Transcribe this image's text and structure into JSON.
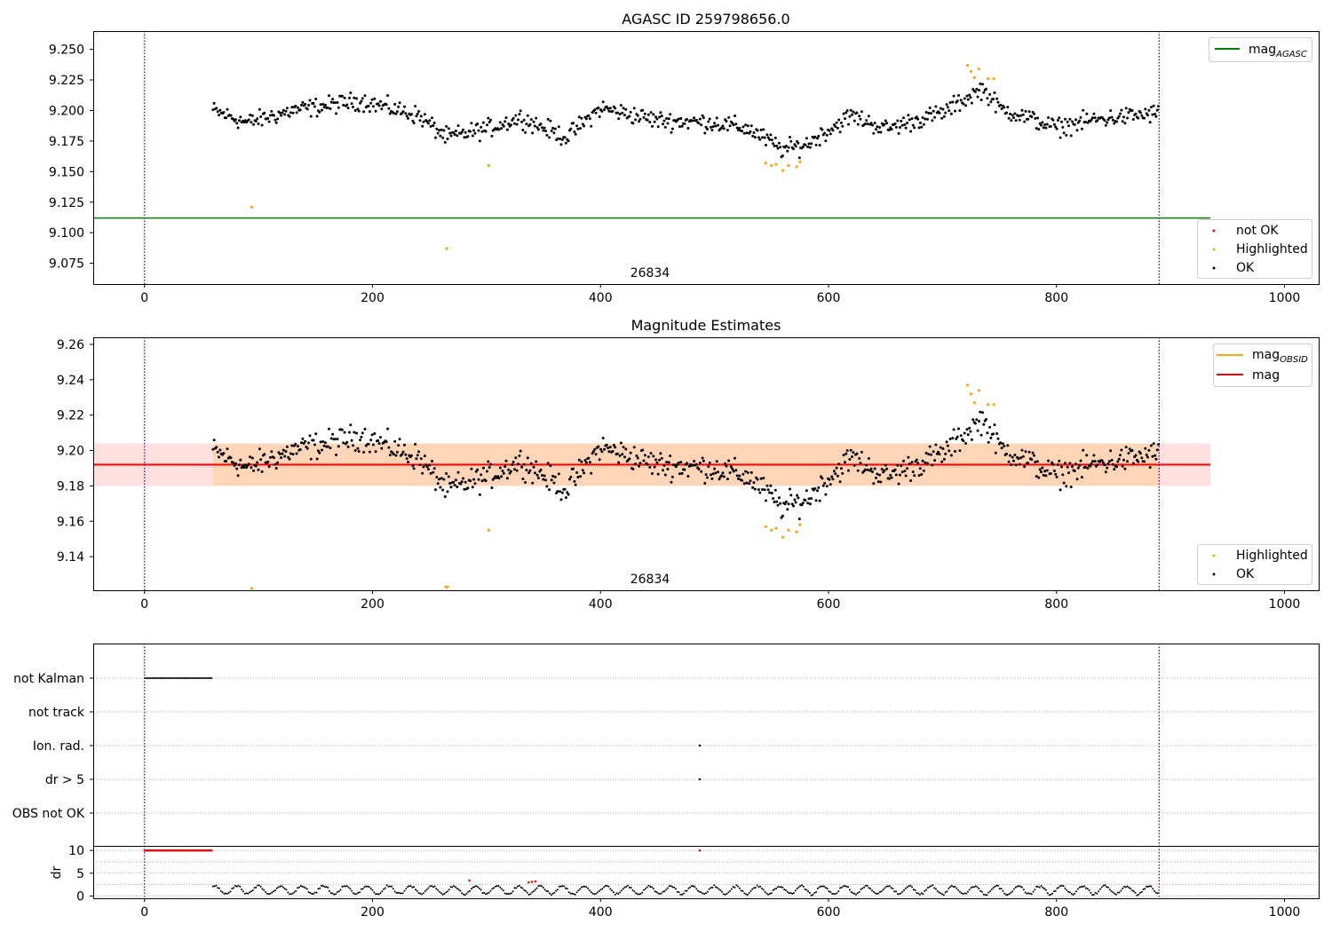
{
  "chart_data": [
    {
      "type": "scatter",
      "title": "AGASC ID 259798656.0",
      "annotation": "26834",
      "xlim": [
        -45,
        1030
      ],
      "ylim": [
        9.058,
        9.265
      ],
      "xticks": [
        0,
        200,
        400,
        600,
        800,
        1000
      ],
      "yticks": [
        9.075,
        9.1,
        9.125,
        9.15,
        9.175,
        9.2,
        9.225,
        9.25
      ],
      "ytick_labels": [
        "9.075",
        "9.100",
        "9.125",
        "9.150",
        "9.175",
        "9.200",
        "9.225",
        "9.250"
      ],
      "vlines": [
        0,
        890
      ],
      "mag_agasc": 9.112,
      "mag_agasc_xrange": [
        -45,
        935
      ],
      "legend_top": [
        "mag_AGASC"
      ],
      "legend_bottom": [
        "not OK",
        "Highlighted",
        "OK"
      ],
      "colors": {
        "ok": "#000000",
        "highlighted": "#ffa500",
        "not_ok": "#ff0000",
        "mag_agasc": "#008000",
        "vline": "#800080"
      },
      "highlighted_points": [
        [
          94,
          9.121
        ],
        [
          265,
          9.087
        ],
        [
          302,
          9.155
        ],
        [
          545,
          9.157
        ],
        [
          550,
          9.155
        ],
        [
          554,
          9.156
        ],
        [
          560,
          9.151
        ],
        [
          565,
          9.155
        ],
        [
          572,
          9.154
        ],
        [
          575,
          9.158
        ],
        [
          722,
          9.237
        ],
        [
          725,
          9.232
        ],
        [
          728,
          9.227
        ],
        [
          732,
          9.234
        ],
        [
          740,
          9.226
        ],
        [
          745,
          9.226
        ]
      ],
      "ok_trend": [
        [
          60,
          9.2
        ],
        [
          90,
          9.19
        ],
        [
          130,
          9.2
        ],
        [
          190,
          9.208
        ],
        [
          240,
          9.196
        ],
        [
          265,
          9.178
        ],
        [
          300,
          9.185
        ],
        [
          330,
          9.194
        ],
        [
          370,
          9.178
        ],
        [
          400,
          9.202
        ],
        [
          450,
          9.192
        ],
        [
          500,
          9.19
        ],
        [
          530,
          9.185
        ],
        [
          560,
          9.168
        ],
        [
          580,
          9.172
        ],
        [
          620,
          9.196
        ],
        [
          650,
          9.185
        ],
        [
          700,
          9.198
        ],
        [
          735,
          9.218
        ],
        [
          750,
          9.202
        ],
        [
          800,
          9.186
        ],
        [
          830,
          9.192
        ],
        [
          890,
          9.198
        ]
      ]
    },
    {
      "type": "scatter",
      "title": "Magnitude Estimates",
      "annotation": "26834",
      "xlim": [
        -45,
        1030
      ],
      "ylim": [
        9.121,
        9.264
      ],
      "xticks": [
        0,
        200,
        400,
        600,
        800,
        1000
      ],
      "yticks": [
        9.14,
        9.16,
        9.18,
        9.2,
        9.22,
        9.24,
        9.26
      ],
      "ytick_labels": [
        "9.14",
        "9.16",
        "9.18",
        "9.20",
        "9.22",
        "9.24",
        "9.26"
      ],
      "vlines": [
        0,
        890
      ],
      "mag": 9.192,
      "mag_band": [
        9.18,
        9.204
      ],
      "mag_xrange": [
        -45,
        935
      ],
      "mag_obsid": 9.192,
      "mag_obsid_band": [
        9.18,
        9.204
      ],
      "mag_obsid_xrange": [
        60,
        890
      ],
      "legend_top": [
        "mag_OBSID",
        "mag"
      ],
      "legend_bottom": [
        "Highlighted",
        "OK"
      ],
      "colors": {
        "ok": "#000000",
        "highlighted": "#ffa500",
        "mag": "#ff0000",
        "mag_obsid": "#ffa500",
        "vline": "#800080"
      },
      "clipped_low_points": [
        [
          94,
          "point"
        ],
        [
          265,
          "triangle"
        ]
      ],
      "highlighted_points": [
        [
          302,
          9.155
        ],
        [
          545,
          9.157
        ],
        [
          550,
          9.155
        ],
        [
          554,
          9.156
        ],
        [
          560,
          9.151
        ],
        [
          565,
          9.155
        ],
        [
          572,
          9.154
        ],
        [
          575,
          9.158
        ],
        [
          722,
          9.237
        ],
        [
          725,
          9.232
        ],
        [
          728,
          9.227
        ],
        [
          732,
          9.234
        ],
        [
          740,
          9.226
        ],
        [
          745,
          9.226
        ]
      ]
    },
    {
      "type": "scatter",
      "title": "",
      "xlim": [
        -45,
        1030
      ],
      "categories": [
        "not Kalman",
        "not track",
        "Ion. rad.",
        "dr > 5",
        "OBS not OK"
      ],
      "flags": {
        "not Kalman": {
          "x_range": [
            0,
            60
          ]
        },
        "not track": {
          "x_range": null
        },
        "Ion. rad.": {
          "x": [
            487
          ]
        },
        "dr > 5": {
          "x": [
            487
          ]
        },
        "OBS not OK": {
          "x_range": null
        }
      },
      "vlines": [
        0,
        890
      ]
    },
    {
      "type": "scatter",
      "title": "",
      "ylabel": "dr",
      "xlim": [
        -45,
        1030
      ],
      "ylim": [
        -0.5,
        11
      ],
      "xticks": [
        0,
        200,
        400,
        600,
        800,
        1000
      ],
      "yticks": [
        0,
        5,
        10
      ],
      "ytick_labels": [
        "0",
        "5",
        "10"
      ],
      "vlines": [
        0,
        890
      ],
      "not_ok_capped": {
        "x_range": [
          0,
          60
        ],
        "value": 10
      },
      "not_ok_points": [
        [
          285,
          3.4
        ],
        [
          337,
          3.0
        ],
        [
          340,
          3.1
        ],
        [
          343,
          3.2
        ],
        [
          487,
          10
        ]
      ],
      "colors": {
        "ok": "#000000",
        "not_ok": "#ff0000",
        "vline": "#800080"
      }
    }
  ],
  "labels": {
    "title1": "AGASC ID 259798656.0",
    "title2": "Magnitude Estimates",
    "ann1": "26834",
    "ann2": "26834",
    "leg1_top": "mag",
    "leg1_top_sub": "AGASC",
    "leg1_notok": "not OK",
    "leg1_high": "Highlighted",
    "leg1_ok": "OK",
    "leg2_obsid": "mag",
    "leg2_obsid_sub": "OBSID",
    "leg2_mag": "mag",
    "leg2_high": "Highlighted",
    "leg2_ok": "OK",
    "dr_label": "dr"
  }
}
